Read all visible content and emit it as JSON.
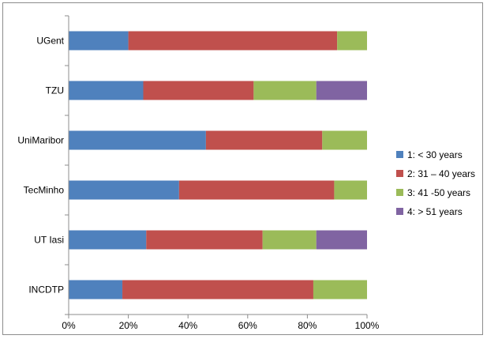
{
  "chart_data": {
    "type": "bar",
    "orientation": "horizontal",
    "stacked": "percent",
    "title": "",
    "xlabel": "",
    "ylabel": "",
    "xlim": [
      0,
      100
    ],
    "x_ticks": [
      "0%",
      "20%",
      "40%",
      "60%",
      "80%",
      "100%"
    ],
    "grid": false,
    "legend_position": "right",
    "categories": [
      "UGent",
      "TZU",
      "UniMaribor",
      "TecMinho",
      "UT Iasi",
      "INCDTP"
    ],
    "series": [
      {
        "name": "1: < 30 years",
        "color": "#4f81bd",
        "values": [
          20,
          25,
          46,
          37,
          26,
          18
        ]
      },
      {
        "name": "2: 31 – 40 years",
        "color": "#c0504d",
        "values": [
          70,
          37,
          39,
          52,
          39,
          64
        ]
      },
      {
        "name": "3: 41 -50 years",
        "color": "#9bbb59",
        "values": [
          10,
          21,
          15,
          11,
          18,
          18
        ]
      },
      {
        "name": "4: > 51 years",
        "color": "#8064a2",
        "values": [
          0,
          17,
          0,
          0,
          17,
          0
        ]
      }
    ]
  }
}
